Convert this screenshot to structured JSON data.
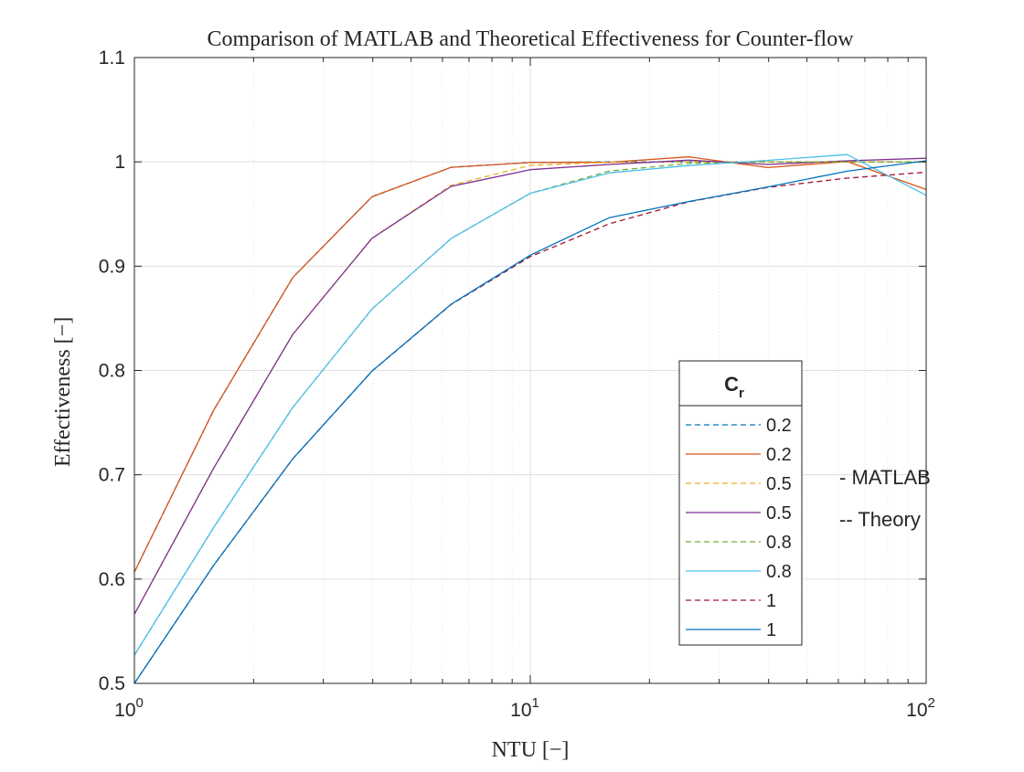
{
  "chart_data": {
    "type": "line",
    "title": "Comparison of MATLAB and Theoretical Effectiveness for Counter-flow",
    "xlabel": "NTU [−]",
    "ylabel": "Effectiveness [−]",
    "xscale": "log",
    "xlim": [
      1,
      100
    ],
    "ylim": [
      0.5,
      1.1
    ],
    "grid": true,
    "x_ticks": [
      {
        "value": 1,
        "base": "10",
        "exp": "0"
      },
      {
        "value": 10,
        "base": "10",
        "exp": "1"
      },
      {
        "value": 100,
        "base": "10",
        "exp": "2"
      }
    ],
    "y_ticks": [
      {
        "value": 0.5,
        "label": "0.5"
      },
      {
        "value": 0.6,
        "label": "0.6"
      },
      {
        "value": 0.7,
        "label": "0.7"
      },
      {
        "value": 0.8,
        "label": "0.8"
      },
      {
        "value": 0.9,
        "label": "0.9"
      },
      {
        "value": 1.0,
        "label": "1"
      },
      {
        "value": 1.1,
        "label": "1.1"
      }
    ],
    "legend": {
      "title": "C",
      "title_subscript": "r",
      "position": "inside-lower-right"
    },
    "annotations": [
      "- MATLAB",
      "-- Theory"
    ],
    "series": [
      {
        "name": "0.2",
        "color": "#0072BD",
        "dash": "dashed",
        "points": [
          [
            1,
            0.6068
          ],
          [
            1.585,
            0.7617
          ],
          [
            2.512,
            0.8891
          ],
          [
            3.981,
            0.9665
          ],
          [
            6.31,
            0.9948
          ],
          [
            10,
            0.9994
          ],
          [
            15.85,
            1.0
          ],
          [
            25.12,
            1.0
          ],
          [
            39.81,
            1.0
          ],
          [
            63.1,
            1.0
          ],
          [
            100,
            1.0
          ]
        ]
      },
      {
        "name": "0.2",
        "color": "#D95319",
        "dash": "solid",
        "points": [
          [
            1,
            0.6068
          ],
          [
            1.585,
            0.7617
          ],
          [
            2.512,
            0.8891
          ],
          [
            3.981,
            0.9665
          ],
          [
            6.31,
            0.9948
          ],
          [
            10,
            0.9994
          ],
          [
            15.85,
            0.9996
          ],
          [
            25.12,
            1.0048
          ],
          [
            39.81,
            0.9945
          ],
          [
            63.1,
            1.0003
          ],
          [
            100,
            0.9735
          ]
        ]
      },
      {
        "name": "0.5",
        "color": "#EDB120",
        "dash": "dashed",
        "points": [
          [
            1,
            0.5663
          ],
          [
            1.585,
            0.7062
          ],
          [
            2.512,
            0.8346
          ],
          [
            3.981,
            0.9267
          ],
          [
            6.31,
            0.9775
          ],
          [
            10,
            0.9966
          ],
          [
            15.85,
            0.9995
          ],
          [
            25.12,
            1.0
          ],
          [
            39.81,
            1.0
          ],
          [
            63.1,
            1.0
          ],
          [
            100,
            1.0
          ]
        ]
      },
      {
        "name": "0.5",
        "color": "#7E2F8E",
        "dash": "solid",
        "points": [
          [
            1,
            0.5663
          ],
          [
            1.585,
            0.7062
          ],
          [
            2.512,
            0.8346
          ],
          [
            3.981,
            0.9267
          ],
          [
            6.31,
            0.9765
          ],
          [
            10,
            0.9925
          ],
          [
            15.85,
            0.9975
          ],
          [
            25.12,
            1.0016
          ],
          [
            39.81,
            0.9975
          ],
          [
            63.1,
            1.001
          ],
          [
            100,
            1.0035
          ]
        ]
      },
      {
        "name": "0.8",
        "color": "#77AC30",
        "dash": "dashed",
        "points": [
          [
            1,
            0.5271
          ],
          [
            1.585,
            0.6493
          ],
          [
            2.512,
            0.7645
          ],
          [
            3.981,
            0.8589
          ],
          [
            6.31,
            0.9265
          ],
          [
            10,
            0.9698
          ],
          [
            15.85,
            0.9912
          ],
          [
            25.12,
            0.9985
          ],
          [
            39.81,
            1.0
          ],
          [
            63.1,
            1.0
          ],
          [
            100,
            1.0
          ]
        ]
      },
      {
        "name": "0.8",
        "color": "#4DBEEE",
        "dash": "solid",
        "points": [
          [
            1,
            0.5271
          ],
          [
            1.585,
            0.6493
          ],
          [
            2.512,
            0.7645
          ],
          [
            3.981,
            0.8589
          ],
          [
            6.31,
            0.9265
          ],
          [
            10,
            0.9698
          ],
          [
            15.85,
            0.9895
          ],
          [
            25.12,
            0.9965
          ],
          [
            39.81,
            1.0015
          ],
          [
            63.1,
            1.007
          ],
          [
            100,
            0.968
          ]
        ]
      },
      {
        "name": "1",
        "color": "#A2142F",
        "dash": "dashed",
        "points": [
          [
            1,
            0.5
          ],
          [
            1.585,
            0.6131
          ],
          [
            2.512,
            0.7153
          ],
          [
            3.981,
            0.7993
          ],
          [
            6.31,
            0.8632
          ],
          [
            10,
            0.9091
          ],
          [
            15.85,
            0.9407
          ],
          [
            25.12,
            0.9617
          ],
          [
            39.81,
            0.9755
          ],
          [
            63.1,
            0.9844
          ],
          [
            100,
            0.9901
          ]
        ]
      },
      {
        "name": "1",
        "color": "#0072BD",
        "dash": "solid",
        "points": [
          [
            1,
            0.5
          ],
          [
            1.585,
            0.6131
          ],
          [
            2.512,
            0.7153
          ],
          [
            3.981,
            0.7993
          ],
          [
            6.31,
            0.8635
          ],
          [
            10,
            0.9105
          ],
          [
            15.85,
            0.9465
          ],
          [
            25.12,
            0.962
          ],
          [
            39.81,
            0.976
          ],
          [
            63.1,
            0.991
          ],
          [
            100,
            1.001
          ]
        ]
      }
    ]
  }
}
